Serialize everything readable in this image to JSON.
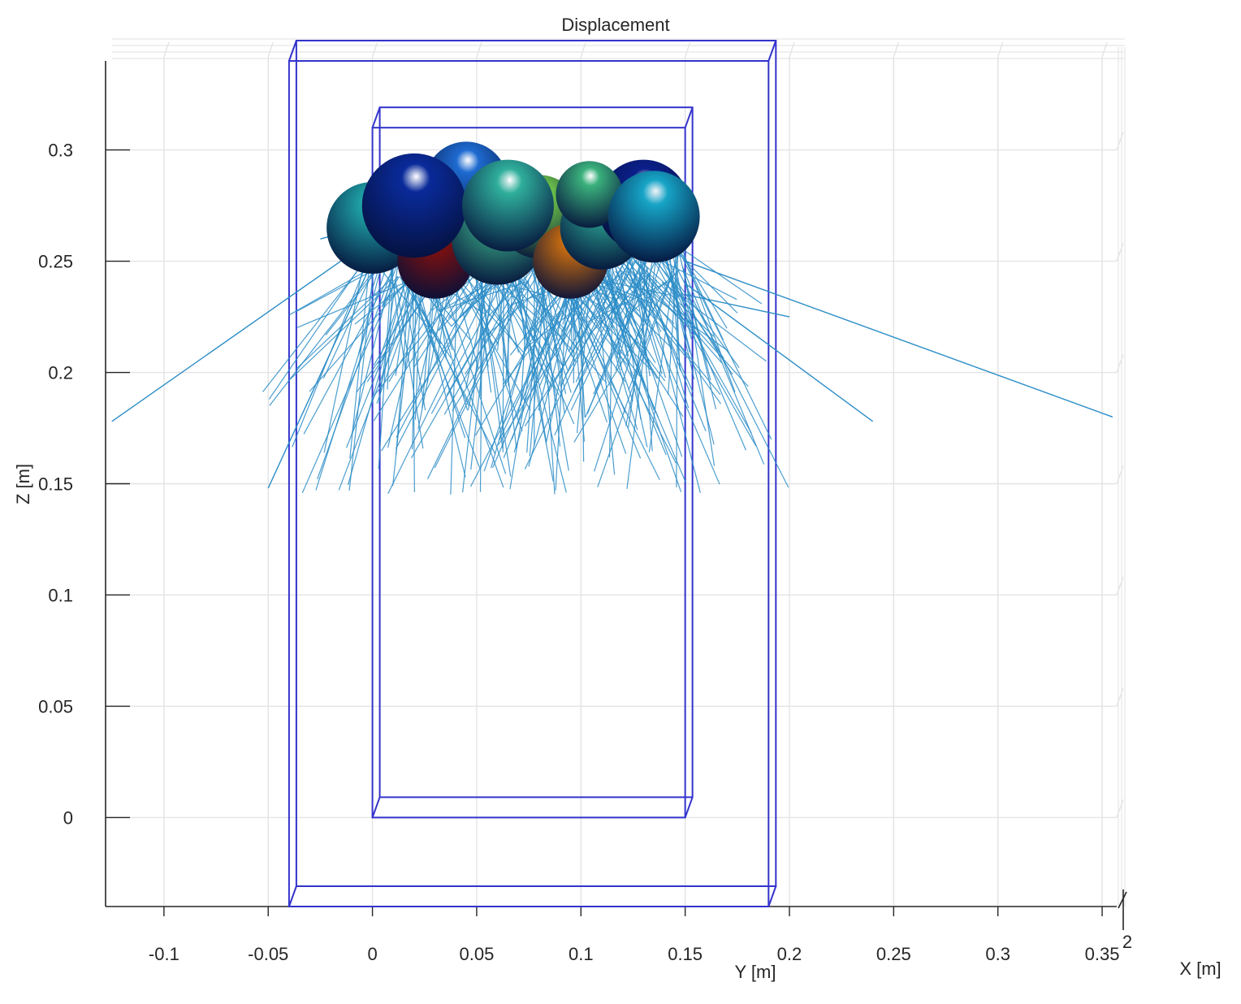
{
  "chart_data": {
    "type": "scatter",
    "title": "Displacement",
    "xlabel": "Y [m]",
    "ylabel": "Z [m]",
    "zlabel": "X [m]",
    "z_axis_visible_tick": "2",
    "xlim": [
      -0.128,
      0.357
    ],
    "ylim": [
      -0.04,
      0.34
    ],
    "xticks": [
      "-0.1",
      "-0.05",
      "0",
      "0.05",
      "0.1",
      "0.15",
      "0.2",
      "0.25",
      "0.3",
      "0.35"
    ],
    "yticks": [
      "0",
      "0.05",
      "0.1",
      "0.15",
      "0.2",
      "0.25",
      "0.3"
    ],
    "grid": true,
    "view": "3-D, looking along X axis",
    "box_color": "#3333cc",
    "vector_color": "#2c8dc7",
    "container_outer": {
      "y": [
        -0.04,
        0.19
      ],
      "z": [
        -0.04,
        0.34
      ]
    },
    "container_inner": {
      "y": [
        0,
        0.15
      ],
      "z": [
        0,
        0.31
      ]
    },
    "spheres": [
      {
        "y": 0.0,
        "z": 0.265,
        "r": 0.022,
        "color": "#1fa3a6"
      },
      {
        "y": 0.03,
        "z": 0.25,
        "r": 0.018,
        "color": "#7a1010"
      },
      {
        "y": 0.045,
        "z": 0.285,
        "r": 0.02,
        "color": "#1e6ad0"
      },
      {
        "y": 0.06,
        "z": 0.26,
        "r": 0.022,
        "color": "#3cb08a"
      },
      {
        "y": 0.08,
        "z": 0.27,
        "r": 0.02,
        "color": "#6cc24a"
      },
      {
        "y": 0.095,
        "z": 0.25,
        "r": 0.018,
        "color": "#c46a10"
      },
      {
        "y": 0.11,
        "z": 0.265,
        "r": 0.02,
        "color": "#2aa08f"
      },
      {
        "y": 0.13,
        "z": 0.275,
        "r": 0.022,
        "color": "#0b1f8a"
      },
      {
        "y": 0.02,
        "z": 0.275,
        "r": 0.025,
        "color": "#0a2a9a"
      },
      {
        "y": 0.065,
        "z": 0.275,
        "r": 0.022,
        "color": "#2fae9b"
      },
      {
        "y": 0.104,
        "z": 0.28,
        "r": 0.016,
        "color": "#3ab07c"
      },
      {
        "y": 0.135,
        "z": 0.27,
        "r": 0.022,
        "color": "#16a4c6"
      }
    ]
  }
}
